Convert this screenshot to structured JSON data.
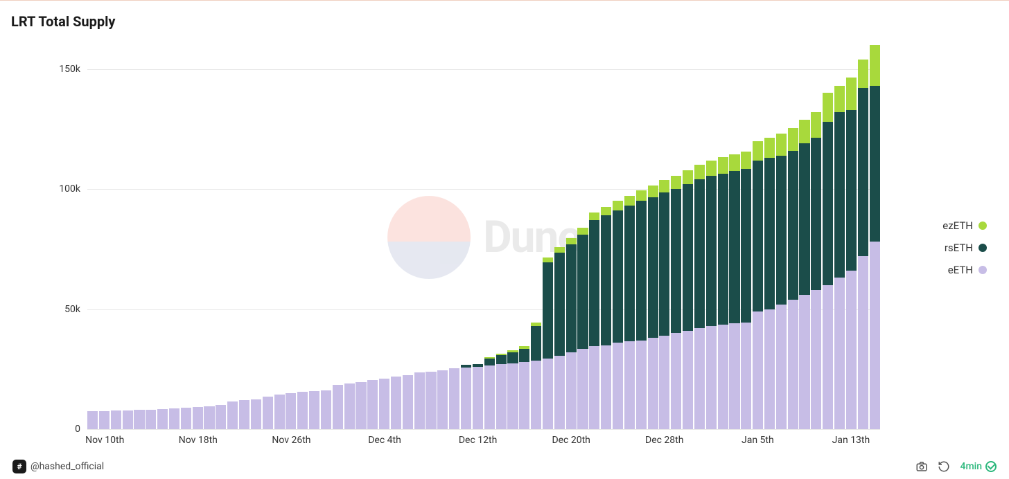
{
  "title": "LRT Total Supply",
  "chart": {
    "type": "stacked-bar",
    "background_color": "#ffffff",
    "grid_color": "#e8e8e8",
    "axis_text_color": "#333333",
    "axis_fontsize": 14,
    "title_fontsize": 20,
    "ylim": [
      0,
      160000
    ],
    "yticks": [
      {
        "value": 0,
        "label": "0"
      },
      {
        "value": 50000,
        "label": "50k"
      },
      {
        "value": 100000,
        "label": "100k"
      },
      {
        "value": 150000,
        "label": "150k"
      }
    ],
    "xtick_labels": [
      "Nov 10th",
      "Nov 18th",
      "Nov 26th",
      "Dec 4th",
      "Dec 12th",
      "Dec 20th",
      "Dec 28th",
      "Jan 5th",
      "Jan 13th"
    ],
    "xtick_indices": [
      1,
      9,
      17,
      25,
      33,
      41,
      49,
      57,
      65
    ],
    "series": [
      {
        "key": "eETH",
        "label": "eETH",
        "color": "#c7bde6"
      },
      {
        "key": "rsETH",
        "label": "rsETH",
        "color": "#1b4d4a"
      },
      {
        "key": "ezETH",
        "label": "ezETH",
        "color": "#a8d93c"
      }
    ],
    "data": [
      {
        "eETH": 7500,
        "rsETH": 0,
        "ezETH": 0
      },
      {
        "eETH": 7600,
        "rsETH": 0,
        "ezETH": 0
      },
      {
        "eETH": 7700,
        "rsETH": 0,
        "ezETH": 0
      },
      {
        "eETH": 7800,
        "rsETH": 0,
        "ezETH": 0
      },
      {
        "eETH": 8000,
        "rsETH": 0,
        "ezETH": 0
      },
      {
        "eETH": 8200,
        "rsETH": 0,
        "ezETH": 0
      },
      {
        "eETH": 8400,
        "rsETH": 0,
        "ezETH": 0
      },
      {
        "eETH": 8600,
        "rsETH": 0,
        "ezETH": 0
      },
      {
        "eETH": 8900,
        "rsETH": 0,
        "ezETH": 0
      },
      {
        "eETH": 9200,
        "rsETH": 0,
        "ezETH": 0
      },
      {
        "eETH": 9500,
        "rsETH": 0,
        "ezETH": 0
      },
      {
        "eETH": 10000,
        "rsETH": 0,
        "ezETH": 0
      },
      {
        "eETH": 11500,
        "rsETH": 0,
        "ezETH": 0
      },
      {
        "eETH": 12000,
        "rsETH": 0,
        "ezETH": 0
      },
      {
        "eETH": 12500,
        "rsETH": 0,
        "ezETH": 0
      },
      {
        "eETH": 13500,
        "rsETH": 0,
        "ezETH": 0
      },
      {
        "eETH": 14500,
        "rsETH": 0,
        "ezETH": 0
      },
      {
        "eETH": 15000,
        "rsETH": 0,
        "ezETH": 0
      },
      {
        "eETH": 15500,
        "rsETH": 0,
        "ezETH": 0
      },
      {
        "eETH": 15800,
        "rsETH": 0,
        "ezETH": 0
      },
      {
        "eETH": 16200,
        "rsETH": 0,
        "ezETH": 0
      },
      {
        "eETH": 18500,
        "rsETH": 0,
        "ezETH": 0
      },
      {
        "eETH": 19000,
        "rsETH": 0,
        "ezETH": 0
      },
      {
        "eETH": 19500,
        "rsETH": 0,
        "ezETH": 0
      },
      {
        "eETH": 20500,
        "rsETH": 0,
        "ezETH": 0
      },
      {
        "eETH": 21000,
        "rsETH": 0,
        "ezETH": 0
      },
      {
        "eETH": 22000,
        "rsETH": 0,
        "ezETH": 0
      },
      {
        "eETH": 22500,
        "rsETH": 0,
        "ezETH": 0
      },
      {
        "eETH": 23500,
        "rsETH": 0,
        "ezETH": 0
      },
      {
        "eETH": 24000,
        "rsETH": 0,
        "ezETH": 0
      },
      {
        "eETH": 24500,
        "rsETH": 0,
        "ezETH": 0
      },
      {
        "eETH": 25500,
        "rsETH": 0,
        "ezETH": 0
      },
      {
        "eETH": 25800,
        "rsETH": 1000,
        "ezETH": 0
      },
      {
        "eETH": 26000,
        "rsETH": 1200,
        "ezETH": 0
      },
      {
        "eETH": 26500,
        "rsETH": 3000,
        "ezETH": 500
      },
      {
        "eETH": 27000,
        "rsETH": 3800,
        "ezETH": 700
      },
      {
        "eETH": 27500,
        "rsETH": 4500,
        "ezETH": 1000
      },
      {
        "eETH": 28000,
        "rsETH": 5500,
        "ezETH": 1200
      },
      {
        "eETH": 28500,
        "rsETH": 14500,
        "ezETH": 1500
      },
      {
        "eETH": 29500,
        "rsETH": 40000,
        "ezETH": 2000
      },
      {
        "eETH": 30500,
        "rsETH": 43000,
        "ezETH": 2200
      },
      {
        "eETH": 32000,
        "rsETH": 45000,
        "ezETH": 2500
      },
      {
        "eETH": 33500,
        "rsETH": 47500,
        "ezETH": 3000
      },
      {
        "eETH": 34500,
        "rsETH": 52500,
        "ezETH": 3200
      },
      {
        "eETH": 35000,
        "rsETH": 54000,
        "ezETH": 3500
      },
      {
        "eETH": 36000,
        "rsETH": 55000,
        "ezETH": 4000
      },
      {
        "eETH": 36500,
        "rsETH": 56500,
        "ezETH": 4200
      },
      {
        "eETH": 37000,
        "rsETH": 58000,
        "ezETH": 4500
      },
      {
        "eETH": 38000,
        "rsETH": 58500,
        "ezETH": 5000
      },
      {
        "eETH": 39000,
        "rsETH": 59500,
        "ezETH": 5200
      },
      {
        "eETH": 40000,
        "rsETH": 60000,
        "ezETH": 5500
      },
      {
        "eETH": 41000,
        "rsETH": 61000,
        "ezETH": 5800
      },
      {
        "eETH": 42000,
        "rsETH": 62000,
        "ezETH": 6000
      },
      {
        "eETH": 43000,
        "rsETH": 62500,
        "ezETH": 6500
      },
      {
        "eETH": 43500,
        "rsETH": 63000,
        "ezETH": 6800
      },
      {
        "eETH": 44000,
        "rsETH": 63500,
        "ezETH": 7000
      },
      {
        "eETH": 44500,
        "rsETH": 64000,
        "ezETH": 7200
      },
      {
        "eETH": 49000,
        "rsETH": 63000,
        "ezETH": 8000
      },
      {
        "eETH": 50000,
        "rsETH": 63000,
        "ezETH": 8500
      },
      {
        "eETH": 52000,
        "rsETH": 62000,
        "ezETH": 9000
      },
      {
        "eETH": 54000,
        "rsETH": 62000,
        "ezETH": 9500
      },
      {
        "eETH": 56000,
        "rsETH": 63000,
        "ezETH": 10000
      },
      {
        "eETH": 58000,
        "rsETH": 63500,
        "ezETH": 10500
      },
      {
        "eETH": 60000,
        "rsETH": 68000,
        "ezETH": 12000
      },
      {
        "eETH": 63000,
        "rsETH": 69000,
        "ezETH": 11000
      },
      {
        "eETH": 66000,
        "rsETH": 67000,
        "ezETH": 13500
      },
      {
        "eETH": 72000,
        "rsETH": 70000,
        "ezETH": 12000
      },
      {
        "eETH": 78000,
        "rsETH": 65000,
        "ezETH": 17000
      }
    ]
  },
  "legend_order": [
    "ezETH",
    "rsETH",
    "eETH"
  ],
  "watermark_text": "Dune",
  "author_handle": "@hashed_official",
  "footer": {
    "timestamp": "4min"
  }
}
